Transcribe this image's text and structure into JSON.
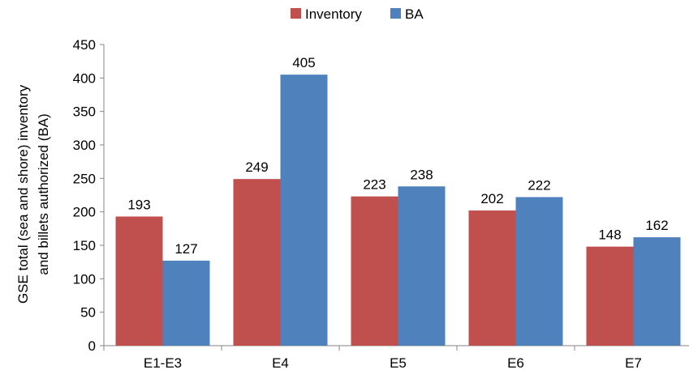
{
  "chart_data": {
    "type": "bar",
    "categories": [
      "E1-E3",
      "E4",
      "E5",
      "E6",
      "E7"
    ],
    "series": [
      {
        "name": "Inventory",
        "color": "#c0504d",
        "values": [
          193,
          249,
          223,
          202,
          148
        ]
      },
      {
        "name": "BA",
        "color": "#4f81bd",
        "values": [
          127,
          405,
          238,
          222,
          162
        ]
      }
    ],
    "ylabel_lines": [
      "GSE total (sea and shore) inventory",
      "and billets authorized (BA)"
    ],
    "ylim": [
      0,
      450
    ],
    "yticks": [
      0,
      50,
      100,
      150,
      200,
      250,
      300,
      350,
      400,
      450
    ],
    "grid": false,
    "legend_position": "top-center",
    "data_labels": true
  }
}
